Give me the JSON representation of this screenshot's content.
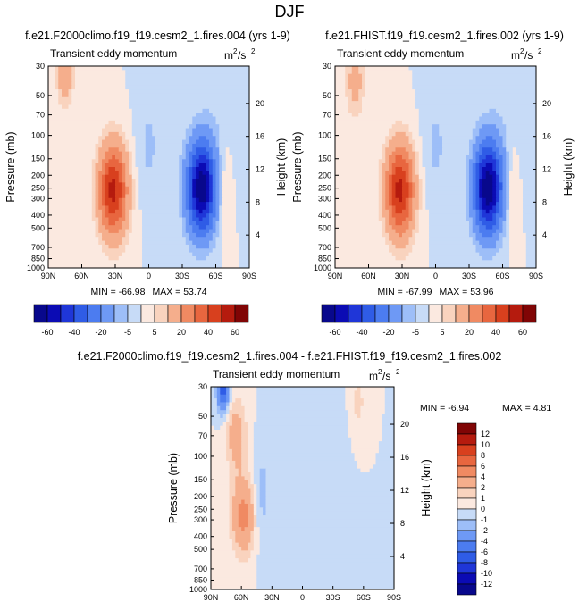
{
  "figure_title": "DJF",
  "chart_data": [
    {
      "type": "heatmap",
      "title": "f.e21.F2000climo.f19_f19.cesm2_1.fires.004 (yrs 1-9)",
      "subtitle": "Transient eddy momentum",
      "units_base": "m",
      "units_exp1": "2",
      "units_mid": "/s",
      "units_exp2": "2",
      "xlabel": "",
      "ylabel": "Pressure (mb)",
      "ylabel_right": "Height (km)",
      "x_ticks": [
        "90N",
        "60N",
        "30N",
        "0",
        "30S",
        "60S",
        "90S"
      ],
      "x_tick_values": [
        90,
        60,
        30,
        0,
        -30,
        -60,
        -90
      ],
      "y_ticks": [
        "30",
        "50",
        "70",
        "100",
        "150",
        "200",
        "250",
        "300",
        "400",
        "500",
        "700",
        "850",
        "1000"
      ],
      "y_tick_values": [
        30,
        50,
        70,
        100,
        150,
        200,
        250,
        300,
        400,
        500,
        700,
        850,
        1000
      ],
      "height_ticks": [
        "4",
        "8",
        "12",
        "16",
        "20"
      ],
      "height_tick_values": [
        4,
        8,
        12,
        16,
        20
      ],
      "xlim": [
        90,
        -90
      ],
      "ylim": [
        1000,
        30
      ],
      "min_label": "MIN = -66.98",
      "max_label": "MAX =  53.74",
      "min": -66.98,
      "max": 53.74,
      "features": [
        {
          "lat": 32,
          "p": 260,
          "value": 53.7,
          "sx": 9,
          "sp": 0.55
        },
        {
          "lat": 75,
          "p": 35,
          "value": 20,
          "sx": 5,
          "sp": 0.35
        },
        {
          "lat": 0,
          "p": 120,
          "value": -6,
          "sx": 8,
          "sp": 0.7
        },
        {
          "lat": -47,
          "p": 250,
          "value": -67,
          "sx": 9,
          "sp": 0.55
        },
        {
          "lat": -68,
          "p": 250,
          "value": 6,
          "sx": 4,
          "sp": 0.6
        },
        {
          "lat": -60,
          "p": 80,
          "value": -3,
          "sx": 12,
          "sp": 0.6
        }
      ]
    },
    {
      "type": "heatmap",
      "title": "f.e21.FHIST.f19_f19.cesm2_1.fires.002 (yrs 1-9)",
      "subtitle": "Transient eddy momentum",
      "units_base": "m",
      "units_exp1": "2",
      "units_mid": "/s",
      "units_exp2": "2",
      "xlabel": "",
      "ylabel": "Pressure (mb)",
      "ylabel_right": "Height (km)",
      "x_ticks": [
        "90N",
        "60N",
        "30N",
        "0",
        "30S",
        "60S",
        "90S"
      ],
      "x_tick_values": [
        90,
        60,
        30,
        0,
        -30,
        -60,
        -90
      ],
      "y_ticks": [
        "30",
        "50",
        "70",
        "100",
        "150",
        "200",
        "250",
        "300",
        "400",
        "500",
        "700",
        "850",
        "1000"
      ],
      "y_tick_values": [
        30,
        50,
        70,
        100,
        150,
        200,
        250,
        300,
        400,
        500,
        700,
        850,
        1000
      ],
      "height_ticks": [
        "4",
        "8",
        "12",
        "16",
        "20"
      ],
      "height_tick_values": [
        4,
        8,
        12,
        16,
        20
      ],
      "xlim": [
        90,
        -90
      ],
      "ylim": [
        1000,
        30
      ],
      "min_label": "MIN = -67.99",
      "max_label": "MAX =  53.96",
      "min": -67.99,
      "max": 53.96,
      "features": [
        {
          "lat": 32,
          "p": 260,
          "value": 54,
          "sx": 9,
          "sp": 0.55
        },
        {
          "lat": 72,
          "p": 40,
          "value": 14,
          "sx": 6,
          "sp": 0.4
        },
        {
          "lat": 0,
          "p": 120,
          "value": -6,
          "sx": 8,
          "sp": 0.7
        },
        {
          "lat": -47,
          "p": 250,
          "value": -68,
          "sx": 9,
          "sp": 0.55
        },
        {
          "lat": -68,
          "p": 250,
          "value": 6,
          "sx": 4,
          "sp": 0.6
        },
        {
          "lat": -60,
          "p": 80,
          "value": -3,
          "sx": 12,
          "sp": 0.6
        }
      ]
    },
    {
      "type": "heatmap",
      "title": "f.e21.F2000climo.f19_f19.cesm2_1.fires.004 - f.e21.FHIST.f19_f19.cesm2_1.fires.002",
      "subtitle": "Transient eddy momentum",
      "units_base": "m",
      "units_exp1": "2",
      "units_mid": "/s",
      "units_exp2": "2",
      "xlabel": "",
      "ylabel": "Pressure (mb)",
      "ylabel_right": "Height (km)",
      "x_ticks": [
        "90N",
        "60N",
        "30N",
        "0",
        "30S",
        "60S",
        "90S"
      ],
      "x_tick_values": [
        90,
        60,
        30,
        0,
        -30,
        -60,
        -90
      ],
      "y_ticks": [
        "30",
        "50",
        "70",
        "100",
        "150",
        "200",
        "250",
        "300",
        "400",
        "500",
        "700",
        "850",
        "1000"
      ],
      "y_tick_values": [
        30,
        50,
        70,
        100,
        150,
        200,
        250,
        300,
        400,
        500,
        700,
        850,
        1000
      ],
      "height_ticks": [
        "4",
        "8",
        "12",
        "16",
        "20"
      ],
      "height_tick_values": [
        4,
        8,
        12,
        16,
        20
      ],
      "xlim": [
        90,
        -90
      ],
      "ylim": [
        1000,
        30
      ],
      "min_label": "MIN =  -6.94",
      "max_label": "MAX =   4.81",
      "min": -6.94,
      "max": 4.81,
      "features": [
        {
          "lat": 58,
          "p": 280,
          "value": 4.8,
          "sx": 8,
          "sp": 0.45
        },
        {
          "lat": 65,
          "p": 70,
          "value": 3,
          "sx": 7,
          "sp": 0.45
        },
        {
          "lat": 78,
          "p": 32,
          "value": -6.9,
          "sx": 4,
          "sp": 0.25
        },
        {
          "lat": 40,
          "p": 200,
          "value": -1.5,
          "sx": 6,
          "sp": 0.6
        },
        {
          "lat": -55,
          "p": 40,
          "value": 1.5,
          "sx": 4,
          "sp": 0.3
        },
        {
          "lat": -20,
          "p": 100,
          "value": -0.8,
          "sx": 10,
          "sp": 0.6
        }
      ]
    }
  ],
  "colorbar_full": {
    "levels": [
      -60,
      -50,
      -40,
      -30,
      -20,
      -10,
      -5,
      0,
      5,
      10,
      20,
      30,
      40,
      50,
      60
    ],
    "labels": [
      "-60",
      "-40",
      "-20",
      "-5",
      "5",
      "20",
      "40",
      "60"
    ],
    "colors": [
      "#08088C",
      "#0B0BB4",
      "#1F36D8",
      "#2F5CE6",
      "#4C7CF0",
      "#6E99F5",
      "#9DBEF8",
      "#C7DBF7",
      "#FBE9E0",
      "#F9D3BE",
      "#F5AE8C",
      "#F08A62",
      "#E8663F",
      "#D8401E",
      "#B51B0E",
      "#800505"
    ]
  },
  "colorbar_diff": {
    "levels": [
      -12,
      -10,
      -8,
      -6,
      -4,
      -2,
      -1,
      0,
      1,
      2,
      4,
      6,
      8,
      10,
      12
    ],
    "labels": [
      "12",
      "10",
      "8",
      "6",
      "4",
      "2",
      "1",
      "0",
      "-1",
      "-2",
      "-4",
      "-6",
      "-8",
      "-10",
      "-12"
    ]
  }
}
